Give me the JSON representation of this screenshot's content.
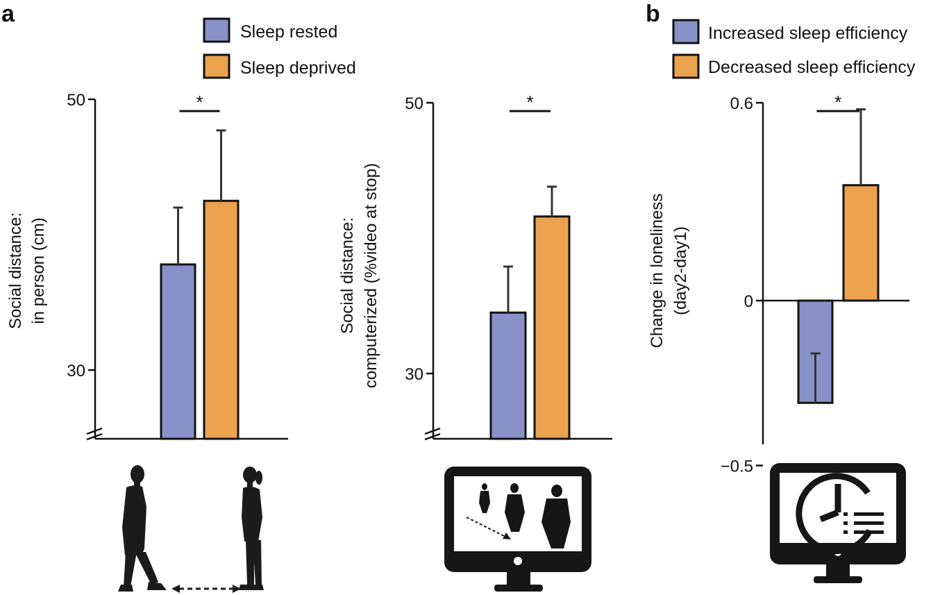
{
  "panels": {
    "a": "a",
    "b": "b"
  },
  "legend_a": {
    "items": [
      {
        "label": "Sleep rested",
        "color": "#8892c8"
      },
      {
        "label": "Sleep deprived",
        "color": "#eba24f"
      }
    ]
  },
  "legend_b": {
    "items": [
      {
        "label": "Increased sleep efficiency",
        "color": "#8892c8"
      },
      {
        "label": "Decreased sleep efficiency",
        "color": "#eba24f"
      }
    ]
  },
  "chart_data": [
    {
      "type": "bar",
      "id": "in-person",
      "ylabel_lines": [
        "Social distance:",
        "in person (cm)"
      ],
      "ylim": [
        25,
        50
      ],
      "yticks": [
        30,
        50
      ],
      "axis_break": true,
      "categories": [
        "Sleep rested",
        "Sleep deprived"
      ],
      "values": [
        37.8,
        42.5
      ],
      "errors": [
        4.2,
        5.2
      ],
      "colors": [
        "#8892c8",
        "#eba24f"
      ],
      "significance": "*"
    },
    {
      "type": "bar",
      "id": "computerized",
      "ylabel_lines": [
        "Social distance:",
        "computerized (%video at stop)"
      ],
      "ylim": [
        25,
        50
      ],
      "yticks": [
        30,
        50
      ],
      "axis_break": true,
      "categories": [
        "Sleep rested",
        "Sleep deprived"
      ],
      "values": [
        34.5,
        41.6
      ],
      "errors": [
        3.4,
        2.2
      ],
      "colors": [
        "#8892c8",
        "#eba24f"
      ],
      "significance": "*"
    },
    {
      "type": "bar",
      "id": "loneliness",
      "ylabel_lines": [
        "Change in loneliness",
        "(day2-day1)"
      ],
      "ylim": [
        -0.5,
        0.6
      ],
      "yticks": [
        0.6,
        0,
        -0.5
      ],
      "ytick_labels": [
        "0.6",
        "0",
        "−0.5"
      ],
      "axis_break": false,
      "categories": [
        "Increased sleep efficiency",
        "Decreased sleep efficiency"
      ],
      "values": [
        -0.31,
        0.35
      ],
      "errors": [
        0.15,
        0.23
      ],
      "colors": [
        "#8892c8",
        "#eba24f"
      ],
      "significance": "*"
    }
  ],
  "icons": [
    "people-facing-icon",
    "monitor-walkers-icon",
    "monitor-clock-icon"
  ]
}
